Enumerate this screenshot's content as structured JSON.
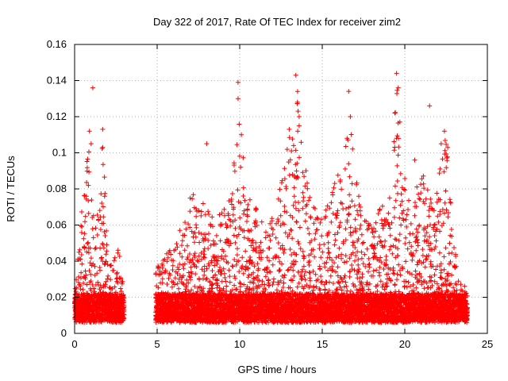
{
  "chart_data": {
    "type": "scatter",
    "title": "Day 322 of 2017, Rate Of TEC Index for receiver zim2",
    "xlabel": "GPS time / hours",
    "ylabel": "ROTI / TECUs",
    "xlim": [
      0,
      25
    ],
    "ylim": [
      0,
      0.16
    ],
    "x_ticks": [
      "0",
      "5",
      "10",
      "15",
      "20",
      "25"
    ],
    "y_ticks": [
      "0",
      "0.02",
      "0.04",
      "0.06",
      "0.08",
      "0.1",
      "0.12",
      "0.14",
      "0.16"
    ],
    "grid": true,
    "marker": "plus",
    "color": "#ff0000",
    "data_gap_hours": [
      3.0,
      4.9
    ],
    "envelope": [
      [
        0.0,
        0.025
      ],
      [
        0.3,
        0.055
      ],
      [
        0.6,
        0.085
      ],
      [
        0.9,
        0.11
      ],
      [
        1.1,
        0.065
      ],
      [
        1.4,
        0.07
      ],
      [
        1.7,
        0.11
      ],
      [
        2.0,
        0.045
      ],
      [
        2.3,
        0.04
      ],
      [
        2.7,
        0.05
      ],
      [
        3.0,
        0.02
      ],
      [
        4.9,
        0.035
      ],
      [
        5.5,
        0.045
      ],
      [
        6.0,
        0.05
      ],
      [
        6.5,
        0.06
      ],
      [
        7.0,
        0.08
      ],
      [
        7.5,
        0.075
      ],
      [
        8.0,
        0.07
      ],
      [
        8.5,
        0.065
      ],
      [
        9.0,
        0.07
      ],
      [
        9.5,
        0.08
      ],
      [
        9.9,
        0.135
      ],
      [
        10.3,
        0.09
      ],
      [
        10.7,
        0.075
      ],
      [
        11.2,
        0.07
      ],
      [
        11.7,
        0.06
      ],
      [
        12.2,
        0.07
      ],
      [
        12.7,
        0.095
      ],
      [
        13.1,
        0.115
      ],
      [
        13.5,
        0.14
      ],
      [
        13.9,
        0.1
      ],
      [
        14.3,
        0.075
      ],
      [
        14.8,
        0.065
      ],
      [
        15.3,
        0.07
      ],
      [
        15.7,
        0.09
      ],
      [
        16.2,
        0.09
      ],
      [
        16.6,
        0.13
      ],
      [
        17.0,
        0.09
      ],
      [
        17.5,
        0.065
      ],
      [
        18.0,
        0.06
      ],
      [
        18.5,
        0.07
      ],
      [
        19.0,
        0.075
      ],
      [
        19.5,
        0.14
      ],
      [
        19.9,
        0.09
      ],
      [
        20.4,
        0.07
      ],
      [
        20.9,
        0.09
      ],
      [
        21.3,
        0.085
      ],
      [
        21.7,
        0.075
      ],
      [
        22.1,
        0.09
      ],
      [
        22.5,
        0.11
      ],
      [
        22.9,
        0.06
      ],
      [
        23.3,
        0.03
      ],
      [
        23.8,
        0.025
      ]
    ],
    "outliers": [
      [
        1.1,
        0.136
      ],
      [
        0.9,
        0.112
      ],
      [
        1.0,
        0.105
      ],
      [
        1.7,
        0.113
      ],
      [
        1.7,
        0.103
      ],
      [
        9.9,
        0.139
      ],
      [
        9.9,
        0.13
      ],
      [
        10.1,
        0.11
      ],
      [
        8.0,
        0.105
      ],
      [
        13.4,
        0.143
      ],
      [
        13.5,
        0.128
      ],
      [
        13.0,
        0.113
      ],
      [
        13.6,
        0.12
      ],
      [
        16.6,
        0.134
      ],
      [
        16.7,
        0.12
      ],
      [
        16.5,
        0.108
      ],
      [
        19.5,
        0.144
      ],
      [
        19.6,
        0.136
      ],
      [
        19.4,
        0.122
      ],
      [
        19.7,
        0.117
      ],
      [
        19.5,
        0.108
      ],
      [
        21.5,
        0.126
      ],
      [
        22.4,
        0.112
      ],
      [
        22.6,
        0.103
      ],
      [
        22.2,
        0.105
      ],
      [
        20.6,
        0.096
      ]
    ]
  }
}
